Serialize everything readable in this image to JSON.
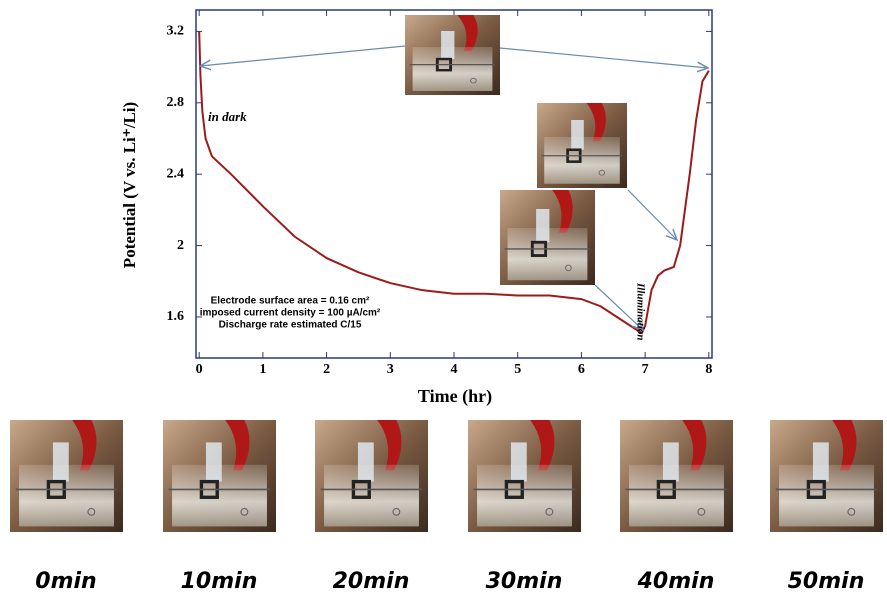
{
  "chart_data": {
    "type": "line",
    "xlabel": "Time (hr)",
    "ylabel": "Potential (V vs. Li⁺/Li)",
    "x": [
      0,
      0.02,
      0.05,
      0.1,
      0.2,
      0.5,
      1,
      1.5,
      2,
      2.5,
      3,
      3.5,
      4,
      4.5,
      5,
      5.5,
      6,
      6.3,
      6.6,
      6.9,
      6.95,
      7,
      7.1,
      7.2,
      7.3,
      7.45,
      7.55,
      7.7,
      7.8,
      7.9,
      8
    ],
    "values": [
      3.2,
      2.95,
      2.75,
      2.6,
      2.5,
      2.4,
      2.22,
      2.05,
      1.93,
      1.85,
      1.79,
      1.75,
      1.73,
      1.73,
      1.72,
      1.72,
      1.7,
      1.66,
      1.59,
      1.52,
      1.51,
      1.55,
      1.75,
      1.83,
      1.86,
      1.88,
      2.0,
      2.4,
      2.7,
      2.92,
      2.98
    ],
    "color": "#9b1c1c",
    "xlim": [
      -0.05,
      8.05
    ],
    "xticks": [
      0,
      1,
      2,
      3,
      4,
      5,
      6,
      7,
      8
    ],
    "ylim": [
      1.37,
      3.32
    ],
    "yticks": [
      1.6,
      2,
      2.4,
      2.8,
      3.2
    ],
    "annotations": [
      "in dark",
      "Illumination",
      "Electrode surface area = 0.16 cm²",
      "imposed current density = 100 µA/cm²",
      "Discharge rate estimated C/15"
    ]
  },
  "photos": {
    "captions": [
      "0min",
      "10min",
      "20min",
      "30min",
      "40min",
      "50min"
    ]
  }
}
